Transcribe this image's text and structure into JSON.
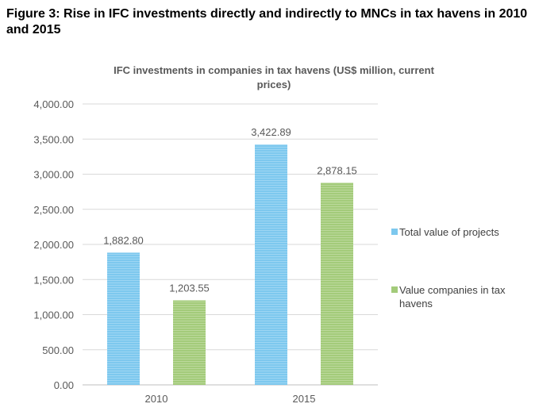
{
  "figure": {
    "title": "Figure 3: Rise in IFC investments directly and indirectly to MNCs in tax havens in 2010 and 2015"
  },
  "chart_data": {
    "type": "bar",
    "title_line1": "IFC investments in companies in tax havens (US$ million, current",
    "title_line2": "prices)",
    "categories": [
      "2010",
      "2015"
    ],
    "series": [
      {
        "name": "Total value of projects",
        "values": [
          1882.8,
          3422.89
        ],
        "labels": [
          "1,882.80",
          "3,422.89"
        ],
        "color": "#7dc8ee"
      },
      {
        "name": "Value companies in tax havens",
        "legend_line1": "Value companies in tax",
        "legend_line2": "havens",
        "values": [
          1203.55,
          2878.15
        ],
        "labels": [
          "1,203.55",
          "2,878.15"
        ],
        "color": "#a3cb7a"
      }
    ],
    "ylim": [
      0,
      4000
    ],
    "yticks": [
      0,
      500,
      1000,
      1500,
      2000,
      2500,
      3000,
      3500,
      4000
    ],
    "ytick_labels": [
      "0.00",
      "500.00",
      "1,000.00",
      "1,500.00",
      "2,000.00",
      "2,500.00",
      "3,000.00",
      "3,500.00",
      "4,000.00"
    ],
    "xlabel": "",
    "ylabel": "",
    "grid": true,
    "legend_position": "right"
  }
}
